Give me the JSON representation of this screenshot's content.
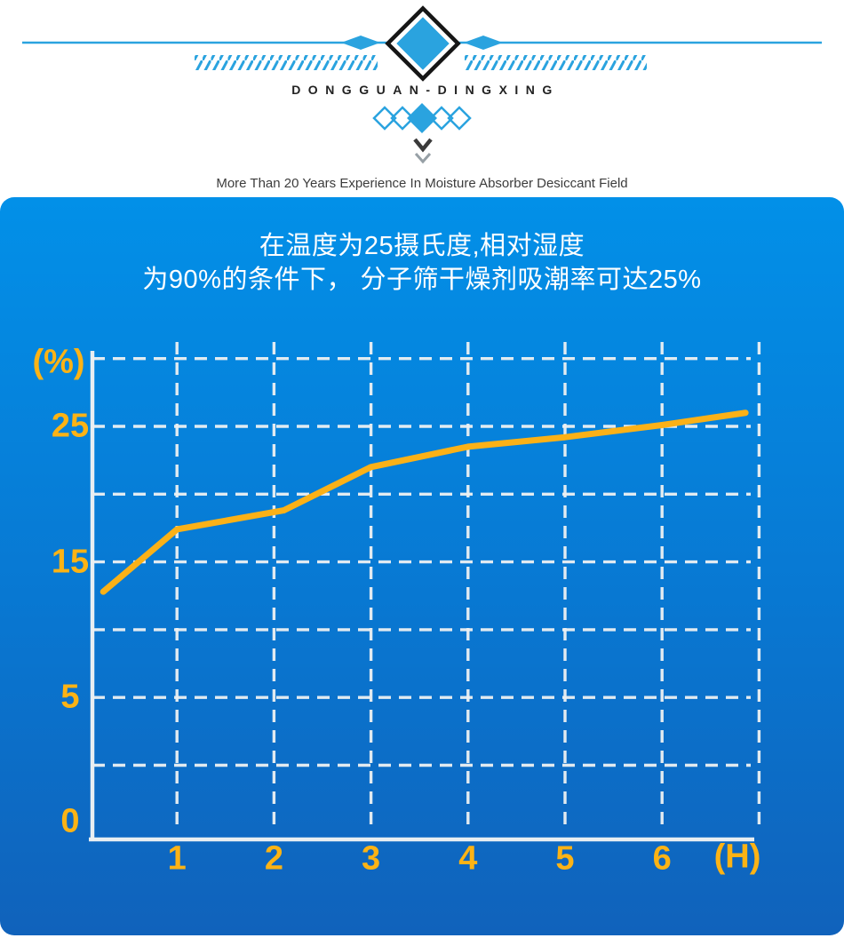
{
  "header": {
    "brand": "DONGGUAN-DINGXING",
    "tagline": "More Than 20 Years Experience In Moisture Absorber Desiccant Field"
  },
  "panel": {
    "title_line1": "在温度为25摄氏度,相对湿度",
    "title_line2": "为90%的条件下， 分子筛干燥剂吸潮率可达25%"
  },
  "chart_data": {
    "type": "line",
    "title": "在温度为25摄氏度,相对湿度为90%的条件下，分子筛干燥剂吸潮率可达25%",
    "series": [
      {
        "name": "分子筛干燥剂吸潮率",
        "x_hours": [
          0.24,
          1.0,
          2.1,
          3.0,
          4.0,
          5.0,
          6.0,
          6.86
        ],
        "y_percent": [
          12.8,
          17.4,
          18.8,
          22.0,
          23.5,
          24.2,
          25.1,
          26.0
        ]
      }
    ],
    "x_axis": {
      "unit_label": "(H)",
      "range": [
        0,
        7
      ],
      "ticks": [
        {
          "label": "1",
          "value": 1
        },
        {
          "label": "2",
          "value": 2
        },
        {
          "label": "3",
          "value": 3
        },
        {
          "label": "4",
          "value": 4
        },
        {
          "label": "5",
          "value": 5
        },
        {
          "label": "6",
          "value": 6
        }
      ],
      "gridline_values": [
        1,
        2,
        3,
        4,
        5,
        6,
        7
      ]
    },
    "y_axis": {
      "unit_label": "(%)",
      "range": [
        0,
        30
      ],
      "ticks": [
        {
          "label": "25",
          "value": 25
        },
        {
          "label": "15",
          "value": 15
        },
        {
          "label": "5",
          "value": 5
        },
        {
          "label": "0",
          "value": 0,
          "at_axis_corner": true
        }
      ],
      "gridline_values": [
        0,
        5,
        10,
        15,
        20,
        25,
        30
      ]
    },
    "grid": "dashed",
    "legend": "none",
    "line_color": "#fbb117",
    "label_color": "#fcb315"
  },
  "colors": {
    "brand_blue": "#2aa3df",
    "brand_text": "#222222",
    "panel_gradient_top": "#0290e8",
    "panel_gradient_bottom": "#1062bb",
    "line_yellow": "#fbb117",
    "grid_white": "#edf1f3",
    "title_text": "#ffffff"
  }
}
